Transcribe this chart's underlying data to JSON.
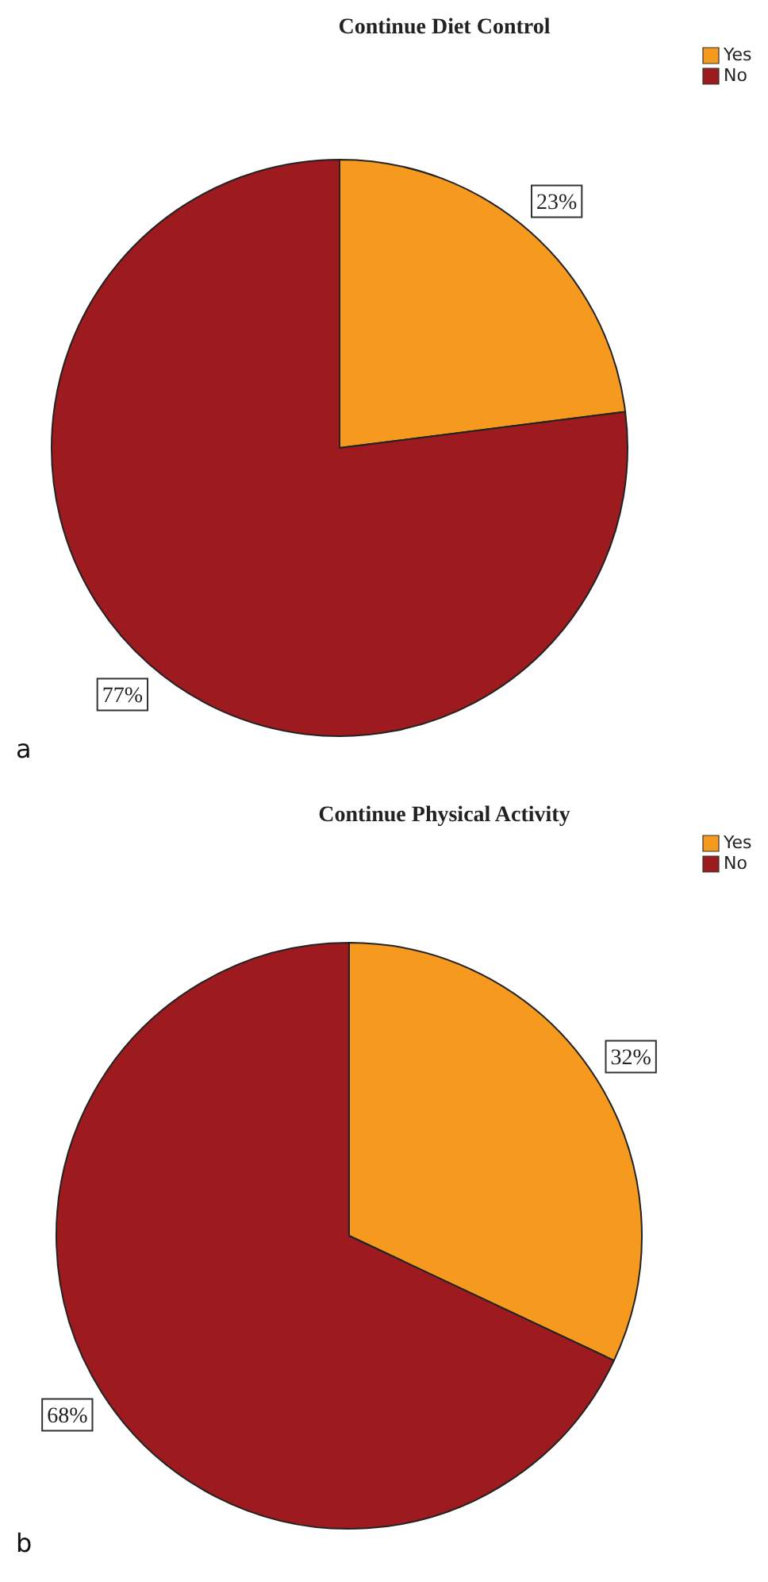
{
  "chart_data": [
    {
      "type": "pie",
      "title": "Continue Diet Control",
      "categories": [
        "Yes",
        "No"
      ],
      "values": [
        23,
        77
      ],
      "colors": [
        "#f5991f",
        "#9d1b1e"
      ],
      "value_labels": [
        "23%",
        "77%"
      ],
      "legend": "top right",
      "annotations": [
        "a"
      ]
    },
    {
      "type": "pie",
      "title": "Continue Physical Activity",
      "categories": [
        "Yes",
        "No"
      ],
      "values": [
        32,
        68
      ],
      "colors": [
        "#f5991f",
        "#9d1b1e"
      ],
      "value_labels": [
        "32%",
        "68%"
      ],
      "legend": "top right",
      "annotations": [
        "b"
      ]
    }
  ]
}
